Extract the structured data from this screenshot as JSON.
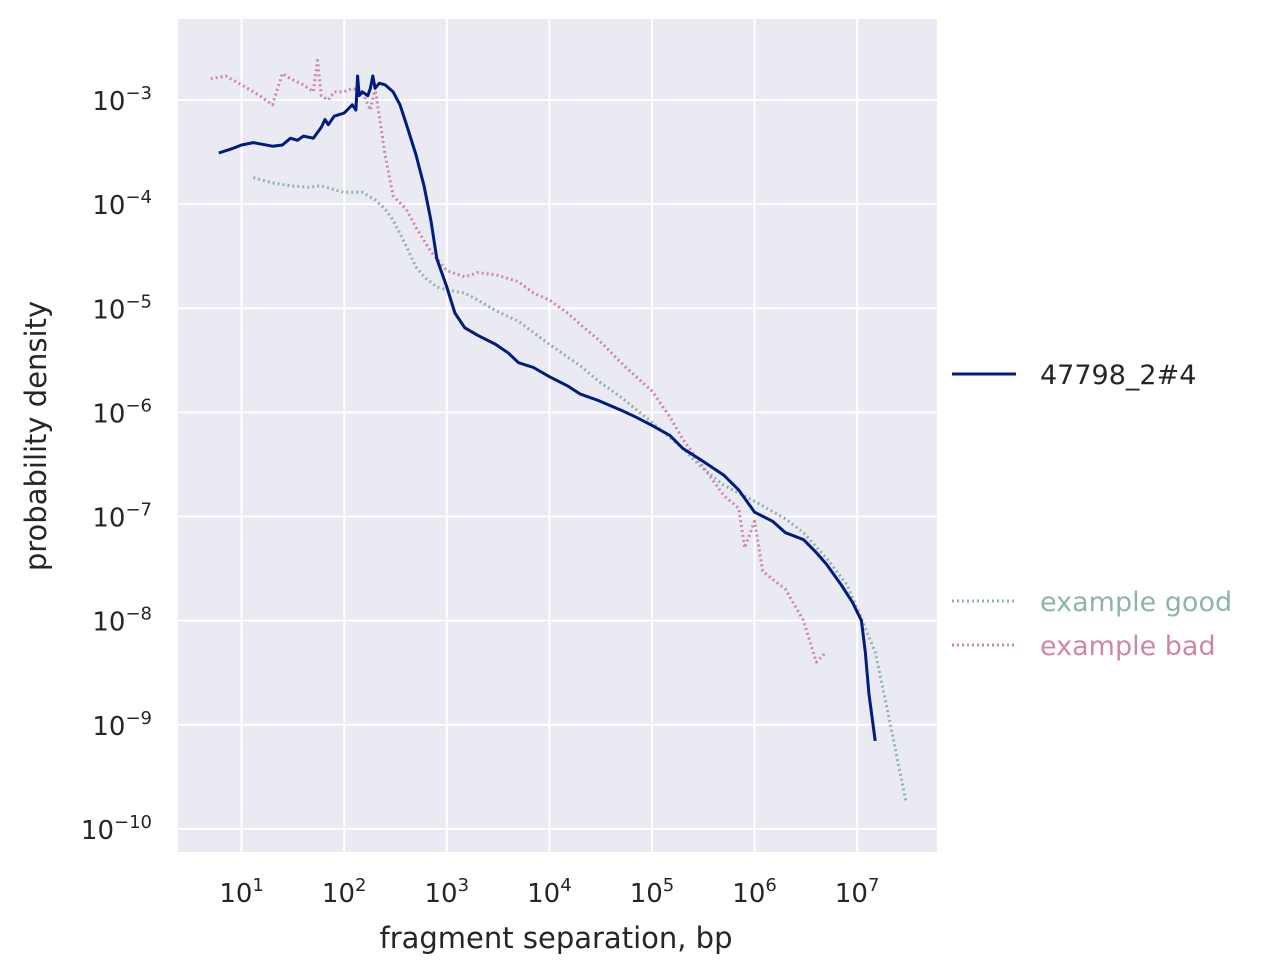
{
  "chart_data": {
    "type": "line",
    "xlabel": "fragment separation, bp",
    "ylabel": "probability density",
    "xscale": "log",
    "yscale": "log",
    "xlim": [
      2.4,
      60000000
    ],
    "ylim": [
      6e-11,
      0.006
    ],
    "grid": true,
    "legend_placement": "outside-right",
    "x_ticks": [
      {
        "base": "10",
        "exp": "1",
        "value": 10
      },
      {
        "base": "10",
        "exp": "2",
        "value": 100
      },
      {
        "base": "10",
        "exp": "3",
        "value": 1000
      },
      {
        "base": "10",
        "exp": "4",
        "value": 10000
      },
      {
        "base": "10",
        "exp": "5",
        "value": 100000
      },
      {
        "base": "10",
        "exp": "6",
        "value": 1000000
      },
      {
        "base": "10",
        "exp": "7",
        "value": 10000000
      }
    ],
    "y_ticks": [
      {
        "base": "10",
        "exp": "−3",
        "value": 0.001
      },
      {
        "base": "10",
        "exp": "−4",
        "value": 0.0001
      },
      {
        "base": "10",
        "exp": "−5",
        "value": 1e-05
      },
      {
        "base": "10",
        "exp": "−6",
        "value": 1e-06
      },
      {
        "base": "10",
        "exp": "−7",
        "value": 1e-07
      },
      {
        "base": "10",
        "exp": "−8",
        "value": 1e-08
      },
      {
        "base": "10",
        "exp": "−9",
        "value": 1e-09
      },
      {
        "base": "10",
        "exp": "−10",
        "value": 1e-10
      }
    ],
    "series": [
      {
        "name": "example good",
        "color": "#8fb3ad",
        "style": "dotted",
        "x": [
          13,
          20,
          30,
          45,
          60,
          75,
          100,
          150,
          200,
          250,
          300,
          400,
          500,
          600,
          800,
          1000,
          1500,
          2000,
          3000,
          5000,
          10000,
          20000,
          30000,
          50000,
          100000,
          200000,
          300000,
          500000,
          1000000,
          2000000,
          3000000,
          5000000,
          8000000,
          10000000,
          15000000,
          20000000,
          30000000
        ],
        "y": [
          0.00018,
          0.00016,
          0.00015,
          0.000145,
          0.00015,
          0.00014,
          0.00013,
          0.00013,
          0.00011,
          9e-05,
          7e-05,
          4e-05,
          2.5e-05,
          2e-05,
          1.6e-05,
          1.5e-05,
          1.4e-05,
          1.2e-05,
          9.5e-06,
          7.5e-06,
          4.5e-06,
          2.8e-06,
          2e-06,
          1.4e-06,
          8e-07,
          4.5e-07,
          3e-07,
          2e-07,
          1.4e-07,
          9.5e-08,
          7e-08,
          4e-08,
          2.2e-08,
          1.3e-08,
          5e-09,
          1.3e-09,
          1.8e-10
        ]
      },
      {
        "name": "example bad",
        "color": "#d087a7",
        "style": "dotted",
        "x": [
          5,
          7,
          10,
          15,
          20,
          25,
          30,
          40,
          50,
          55,
          60,
          70,
          80,
          100,
          120,
          150,
          180,
          200,
          250,
          300,
          400,
          500,
          700,
          1000,
          1500,
          2000,
          3000,
          5000,
          7000,
          10000,
          15000,
          20000,
          30000,
          50000,
          70000,
          100000,
          150000,
          200000,
          300000,
          500000,
          700000,
          800000,
          1000000,
          1200000,
          1500000,
          2000000,
          3000000,
          4000000,
          5000000
        ],
        "y": [
          0.0016,
          0.0017,
          0.0014,
          0.0011,
          0.0009,
          0.0018,
          0.0016,
          0.0014,
          0.0012,
          0.0024,
          0.0011,
          0.001,
          0.0012,
          0.0012,
          0.0013,
          0.0012,
          0.0008,
          0.0013,
          0.0003,
          0.00012,
          9e-05,
          6e-05,
          3.5e-05,
          2.3e-05,
          2e-05,
          2.2e-05,
          2.1e-05,
          1.8e-05,
          1.4e-05,
          1.2e-05,
          9e-06,
          7e-06,
          5e-06,
          3e-06,
          2.2e-06,
          1.6e-06,
          9e-07,
          5.5e-07,
          3.2e-07,
          1.6e-07,
          1.2e-07,
          5e-08,
          9e-08,
          3e-08,
          2.5e-08,
          2e-08,
          1e-08,
          4e-09,
          5e-09
        ]
      },
      {
        "name": "47798_2#4",
        "color": "#001c7f",
        "style": "solid",
        "x": [
          6,
          8,
          10,
          13,
          20,
          25,
          30,
          35,
          40,
          50,
          60,
          65,
          70,
          80,
          100,
          120,
          130,
          135,
          140,
          150,
          170,
          180,
          190,
          200,
          220,
          250,
          300,
          350,
          400,
          500,
          600,
          700,
          800,
          1000,
          1200,
          1500,
          2000,
          3000,
          4000,
          5000,
          7000,
          10000,
          15000,
          20000,
          30000,
          50000,
          70000,
          100000,
          150000,
          200000,
          300000,
          500000,
          700000,
          1000000,
          1500000,
          2000000,
          3000000,
          4000000,
          5000000,
          7000000,
          9000000,
          11000000,
          12000000,
          13000000,
          15000000
        ],
        "y": [
          0.00031,
          0.00034,
          0.00037,
          0.00039,
          0.00036,
          0.00037,
          0.00043,
          0.00041,
          0.00045,
          0.00043,
          0.00055,
          0.00065,
          0.00058,
          0.0007,
          0.00075,
          0.0009,
          0.0008,
          0.0017,
          0.0011,
          0.0012,
          0.0011,
          0.0013,
          0.0017,
          0.0013,
          0.00145,
          0.0014,
          0.0012,
          0.0009,
          0.0006,
          0.0003,
          0.00015,
          7e-05,
          3e-05,
          1.6e-05,
          9e-06,
          6.5e-06,
          5.5e-06,
          4.5e-06,
          3.7e-06,
          3e-06,
          2.7e-06,
          2.2e-06,
          1.8e-06,
          1.5e-06,
          1.3e-06,
          1.05e-06,
          9e-07,
          7.5e-07,
          6e-07,
          4.5e-07,
          3.5e-07,
          2.5e-07,
          1.8e-07,
          1.1e-07,
          9e-08,
          7e-08,
          6e-08,
          4.5e-08,
          3.5e-08,
          2.2e-08,
          1.5e-08,
          1e-08,
          5e-09,
          2e-09,
          7e-10
        ]
      }
    ],
    "legend": [
      {
        "label": "47798_2#4",
        "color": "#001c7f",
        "style": "solid",
        "text_color": "#262626"
      },
      {
        "label": "example good",
        "color": "#8fb3ad",
        "style": "dotted",
        "text_color": "#8fb3ad"
      },
      {
        "label": "example bad",
        "color": "#d087a7",
        "style": "dotted",
        "text_color": "#d087a7"
      }
    ]
  }
}
